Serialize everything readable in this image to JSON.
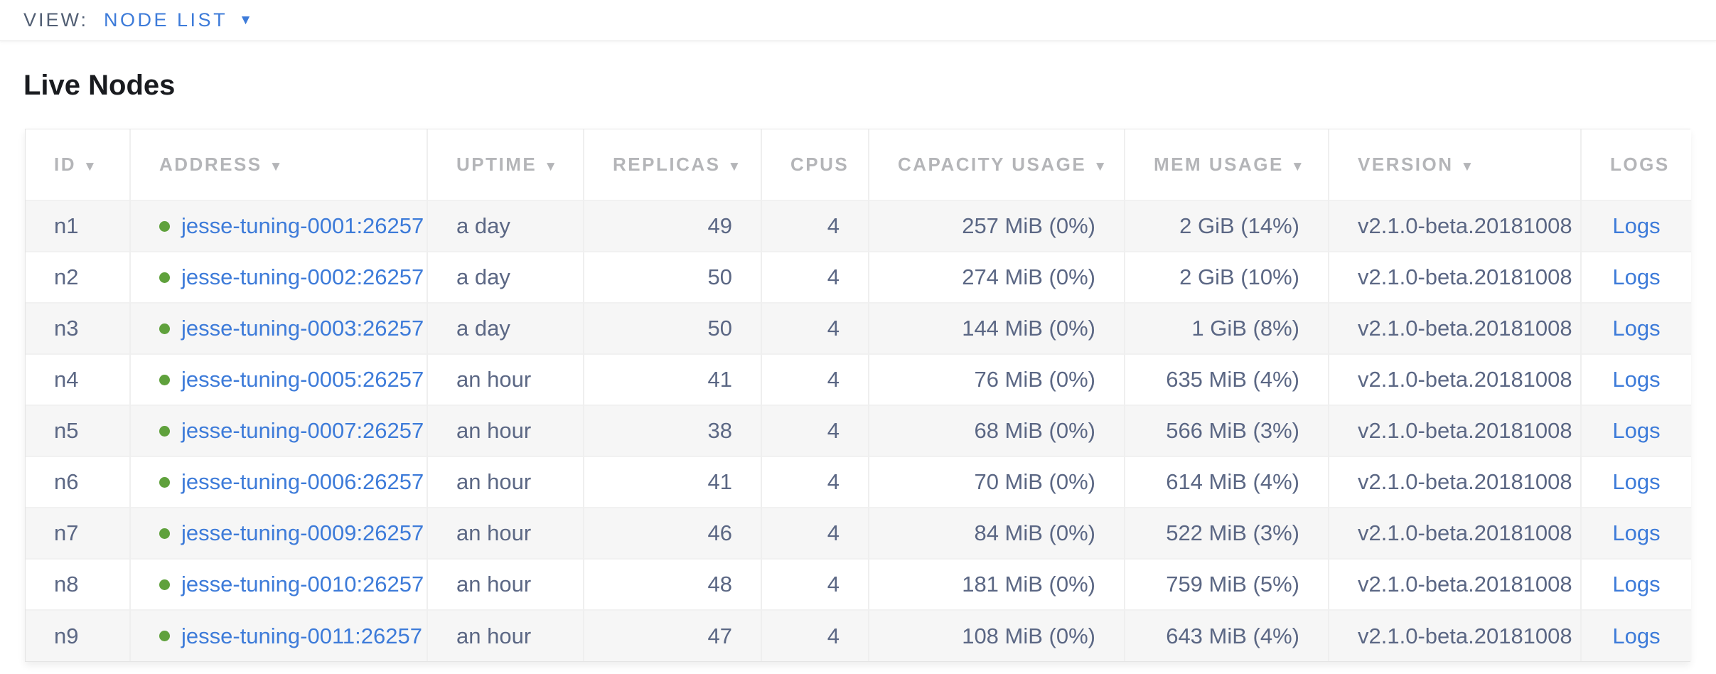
{
  "view_bar": {
    "label": "VIEW:",
    "selected_view": "NODE LIST",
    "dropdown_icon": "chevron-down-icon",
    "caret_glyph": "▼"
  },
  "page": {
    "title": "Live Nodes"
  },
  "table": {
    "columns": [
      {
        "key": "id",
        "label": "ID",
        "sortable": true,
        "align": "al"
      },
      {
        "key": "address",
        "label": "ADDRESS",
        "sortable": true,
        "align": "al"
      },
      {
        "key": "uptime",
        "label": "UPTIME",
        "sortable": true,
        "align": "al"
      },
      {
        "key": "replicas",
        "label": "REPLICAS",
        "sortable": true,
        "align": "ar"
      },
      {
        "key": "cpus",
        "label": "CPUS",
        "sortable": false,
        "align": "ar"
      },
      {
        "key": "capacity",
        "label": "CAPACITY USAGE",
        "sortable": true,
        "align": "ar"
      },
      {
        "key": "mem",
        "label": "MEM USAGE",
        "sortable": true,
        "align": "ar"
      },
      {
        "key": "version",
        "label": "VERSION",
        "sortable": true,
        "align": "al"
      },
      {
        "key": "logs",
        "label": "LOGS",
        "sortable": false,
        "align": "ac"
      }
    ],
    "rows": [
      {
        "id": "n1",
        "status_icon": "green-dot",
        "address": "jesse-tuning-0001:26257",
        "uptime": "a day",
        "replicas": "49",
        "cpus": "4",
        "capacity": "257 MiB (0%)",
        "mem": "2 GiB (14%)",
        "version": "v2.1.0-beta.20181008",
        "logs": "Logs"
      },
      {
        "id": "n2",
        "status_icon": "green-dot",
        "address": "jesse-tuning-0002:26257",
        "uptime": "a day",
        "replicas": "50",
        "cpus": "4",
        "capacity": "274 MiB (0%)",
        "mem": "2 GiB (10%)",
        "version": "v2.1.0-beta.20181008",
        "logs": "Logs"
      },
      {
        "id": "n3",
        "status_icon": "green-dot",
        "address": "jesse-tuning-0003:26257",
        "uptime": "a day",
        "replicas": "50",
        "cpus": "4",
        "capacity": "144 MiB (0%)",
        "mem": "1 GiB (8%)",
        "version": "v2.1.0-beta.20181008",
        "logs": "Logs"
      },
      {
        "id": "n4",
        "status_icon": "green-dot",
        "address": "jesse-tuning-0005:26257",
        "uptime": "an hour",
        "replicas": "41",
        "cpus": "4",
        "capacity": "76 MiB (0%)",
        "mem": "635 MiB (4%)",
        "version": "v2.1.0-beta.20181008",
        "logs": "Logs"
      },
      {
        "id": "n5",
        "status_icon": "green-dot",
        "address": "jesse-tuning-0007:26257",
        "uptime": "an hour",
        "replicas": "38",
        "cpus": "4",
        "capacity": "68 MiB (0%)",
        "mem": "566 MiB (3%)",
        "version": "v2.1.0-beta.20181008",
        "logs": "Logs"
      },
      {
        "id": "n6",
        "status_icon": "green-dot",
        "address": "jesse-tuning-0006:26257",
        "uptime": "an hour",
        "replicas": "41",
        "cpus": "4",
        "capacity": "70 MiB (0%)",
        "mem": "614 MiB (4%)",
        "version": "v2.1.0-beta.20181008",
        "logs": "Logs"
      },
      {
        "id": "n7",
        "status_icon": "green-dot",
        "address": "jesse-tuning-0009:26257",
        "uptime": "an hour",
        "replicas": "46",
        "cpus": "4",
        "capacity": "84 MiB (0%)",
        "mem": "522 MiB (3%)",
        "version": "v2.1.0-beta.20181008",
        "logs": "Logs"
      },
      {
        "id": "n8",
        "status_icon": "green-dot",
        "address": "jesse-tuning-0010:26257",
        "uptime": "an hour",
        "replicas": "48",
        "cpus": "4",
        "capacity": "181 MiB (0%)",
        "mem": "759 MiB (5%)",
        "version": "v2.1.0-beta.20181008",
        "logs": "Logs"
      },
      {
        "id": "n9",
        "status_icon": "green-dot",
        "address": "jesse-tuning-0011:26257",
        "uptime": "an hour",
        "replicas": "47",
        "cpus": "4",
        "capacity": "108 MiB (0%)",
        "mem": "643 MiB (4%)",
        "version": "v2.1.0-beta.20181008",
        "logs": "Logs"
      }
    ]
  },
  "colors": {
    "link_blue": "#3d7bd9",
    "node_live_green": "#5fa13c",
    "header_gray": "#b4b5b8",
    "cell_text": "#5b6784",
    "title_text": "#191b1f",
    "row_alt_bg": "#f6f6f6"
  }
}
